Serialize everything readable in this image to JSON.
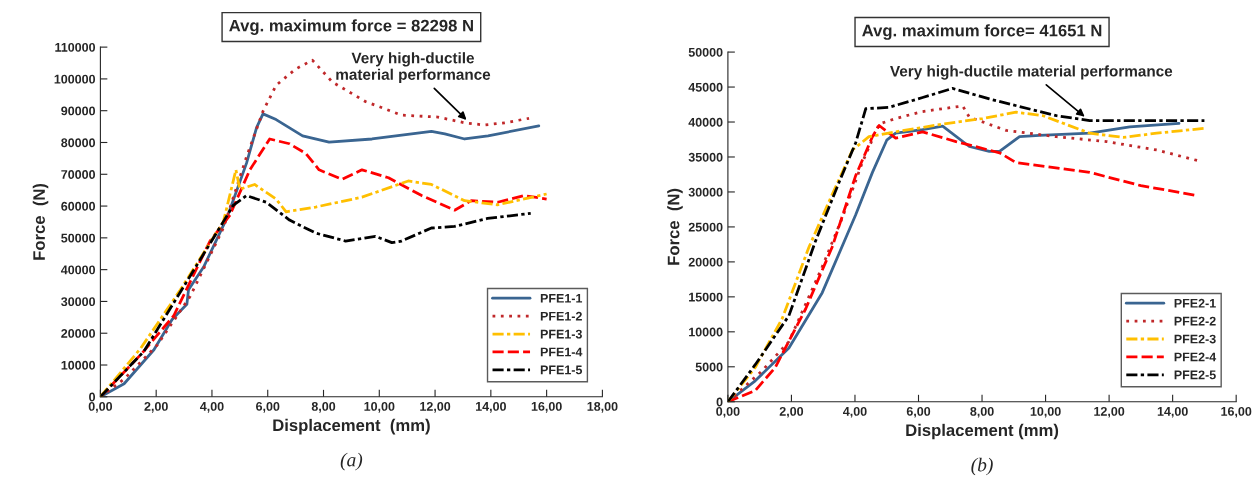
{
  "chart_data": [
    {
      "type": "line",
      "title": "Avg. maximum force = 82298 N",
      "xlabel": "Displacement  (mm)",
      "ylabel": "Force  (N)",
      "xlim": [
        0,
        18
      ],
      "xticks": [
        {
          "value": 0,
          "label": "0,00"
        },
        {
          "value": 2,
          "label": "2,00"
        },
        {
          "value": 4,
          "label": "4,00"
        },
        {
          "value": 6,
          "label": "6,00"
        },
        {
          "value": 8,
          "label": "8,00"
        },
        {
          "value": 10,
          "label": "10,00"
        },
        {
          "value": 12,
          "label": "12,00"
        },
        {
          "value": 14,
          "label": "14,00"
        },
        {
          "value": 16,
          "label": "16,00"
        },
        {
          "value": 18,
          "label": "18,00"
        }
      ],
      "ylim": [
        0,
        110000
      ],
      "yticks": [
        0,
        10000,
        20000,
        30000,
        40000,
        50000,
        60000,
        70000,
        80000,
        90000,
        100000,
        110000
      ],
      "grid": false,
      "legend": "bottom right",
      "annotations": [
        {
          "text": "Very high-ductile\nmaterial performance",
          "x": 13.2,
          "y": 86500
        },
        "(a)"
      ],
      "series": [
        {
          "name": "PFE1-1",
          "color": "#3a6591",
          "line_style": "solid",
          "x": [
            0,
            0.85,
            1.92,
            2.57,
            3.1,
            3.16,
            3.7,
            4.53,
            5.24,
            5.6,
            5.83,
            6.3,
            7.25,
            8.2,
            9.74,
            11.87,
            12.35,
            13.06,
            13.9,
            15.72
          ],
          "values": [
            0,
            4100,
            14800,
            24300,
            29100,
            33700,
            40800,
            56100,
            73500,
            84700,
            89000,
            87200,
            82100,
            80100,
            81100,
            83500,
            82700,
            81100,
            82100,
            85200
          ]
        },
        {
          "name": "PFE1-2",
          "color": "#c0282a",
          "line_style": "dotted",
          "x": [
            0,
            0.85,
            2.04,
            3.22,
            4.41,
            5.24,
            5.83,
            6.3,
            7.0,
            7.6,
            8.32,
            9.5,
            10.8,
            12.1,
            13.06,
            13.77,
            14.5,
            15.37
          ],
          "values": [
            0,
            5600,
            16300,
            31600,
            53100,
            75500,
            89800,
            98000,
            103100,
            105900,
            99000,
            92900,
            88600,
            88000,
            86200,
            85500,
            86200,
            87600
          ]
        },
        {
          "name": "PFE1-3",
          "color": "#ffbf00",
          "line_style": "dashdot",
          "x": [
            0,
            1.45,
            2.87,
            4.41,
            4.86,
            5.0,
            5.53,
            6.3,
            6.66,
            7.72,
            9.38,
            11.04,
            11.87,
            13.06,
            14.24,
            16.0
          ],
          "values": [
            0,
            15300,
            33700,
            55100,
            71400,
            65300,
            66800,
            62200,
            58200,
            59700,
            62800,
            67900,
            66800,
            61700,
            60400,
            63800
          ]
        },
        {
          "name": "PFE1-4",
          "color": "#ff0000",
          "line_style": "dashed",
          "x": [
            0,
            1.45,
            2.63,
            3.93,
            4.64,
            5.36,
            6.07,
            6.78,
            7.37,
            7.84,
            8.67,
            9.38,
            10.33,
            11.52,
            12.7,
            13.3,
            14.24,
            15.2,
            16.0
          ],
          "values": [
            0,
            13300,
            25500,
            49000,
            57100,
            71400,
            81100,
            79600,
            76500,
            71400,
            68400,
            71400,
            68900,
            63300,
            58700,
            61700,
            61200,
            63300,
            62200
          ]
        },
        {
          "name": "PFE1-5",
          "color": "#000000",
          "line_style": "dashdot",
          "x": [
            0,
            1.56,
            2.99,
            4.41,
            4.76,
            5.24,
            5.95,
            6.78,
            7.72,
            8.79,
            9.86,
            10.45,
            10.8,
            11.87,
            12.7,
            13.88,
            15.43
          ],
          "values": [
            0,
            14300,
            34700,
            55100,
            60200,
            63300,
            61200,
            55600,
            51500,
            49000,
            50500,
            48500,
            49000,
            53100,
            53600,
            56100,
            57700
          ]
        }
      ]
    },
    {
      "type": "line",
      "title": "Avg. maximum force= 41651 N",
      "xlabel": "Displacement (mm)",
      "ylabel": "Force  (N)",
      "xlim": [
        0,
        16
      ],
      "xticks": [
        {
          "value": 0,
          "label": "0,00"
        },
        {
          "value": 2,
          "label": "2,00"
        },
        {
          "value": 4,
          "label": "4,00"
        },
        {
          "value": 6,
          "label": "6,00"
        },
        {
          "value": 8,
          "label": "8,00"
        },
        {
          "value": 10,
          "label": "10,00"
        },
        {
          "value": 12,
          "label": "12,00"
        },
        {
          "value": 14,
          "label": "14,00"
        },
        {
          "value": 16,
          "label": "16,00"
        }
      ],
      "ylim": [
        0,
        50000
      ],
      "yticks": [
        0,
        5000,
        10000,
        15000,
        20000,
        25000,
        30000,
        35000,
        40000,
        45000,
        50000
      ],
      "grid": false,
      "legend": "bottom right",
      "annotations": [
        {
          "text": "Very high-ductile material performance",
          "x": 11.3,
          "y": 40500
        },
        "(b)"
      ],
      "series": [
        {
          "name": "PFE2-1",
          "color": "#3a6591",
          "line_style": "solid",
          "x": [
            0,
            0.86,
            1.92,
            2.97,
            4.02,
            4.55,
            5.0,
            5.28,
            6.13,
            6.76,
            7.6,
            8.23,
            8.55,
            9.18,
            9.81,
            11.39,
            12.65,
            14.2
          ],
          "values": [
            0,
            3000,
            7700,
            15600,
            26700,
            32800,
            37400,
            38400,
            38900,
            39400,
            36500,
            35800,
            35800,
            37900,
            38100,
            38400,
            39300,
            39800
          ]
        },
        {
          "name": "PFE2-2",
          "color": "#c0282a",
          "line_style": "dotted",
          "x": [
            0,
            1.07,
            1.92,
            2.97,
            3.6,
            4.23,
            4.76,
            5.28,
            6.13,
            7.39,
            7.6,
            8.76,
            10.34,
            11.92,
            13.5,
            14.86
          ],
          "values": [
            0,
            4400,
            8600,
            19300,
            26300,
            34200,
            39700,
            40500,
            41500,
            42300,
            40700,
            38800,
            37900,
            37200,
            36000,
            34400
          ]
        },
        {
          "name": "PFE2-3",
          "color": "#ffbf00",
          "line_style": "dashdot",
          "x": [
            0,
            0.86,
            1.71,
            2.55,
            3.18,
            3.92,
            4.44,
            5.28,
            6.76,
            8.02,
            9.07,
            9.92,
            11.39,
            12.44,
            13.5,
            15.0
          ],
          "values": [
            0,
            4900,
            11900,
            22100,
            28600,
            36000,
            37900,
            38600,
            39700,
            40500,
            41400,
            40900,
            38400,
            37800,
            38400,
            39100
          ]
        },
        {
          "name": "PFE2-4",
          "color": "#ff0000",
          "line_style": "dashed",
          "x": [
            0,
            0.86,
            1.49,
            2.45,
            3.28,
            4.02,
            4.55,
            4.76,
            5.28,
            6.13,
            7.18,
            8.55,
            9.07,
            11.39,
            13.0,
            14.76
          ],
          "values": [
            0,
            1600,
            4900,
            13300,
            22100,
            32300,
            37900,
            39500,
            37700,
            38600,
            37200,
            35600,
            34200,
            32800,
            30900,
            29500
          ]
        },
        {
          "name": "PFE2-5",
          "color": "#000000",
          "line_style": "dashdot",
          "x": [
            0,
            0.86,
            1.92,
            2.76,
            3.5,
            4.02,
            4.34,
            5.07,
            6.13,
            7.07,
            8.23,
            10.34,
            11.39,
            13.5,
            15.0
          ],
          "values": [
            0,
            5300,
            12300,
            23000,
            31400,
            37000,
            41900,
            42100,
            43500,
            44800,
            43300,
            40900,
            40200,
            40200,
            40200
          ]
        }
      ]
    }
  ]
}
